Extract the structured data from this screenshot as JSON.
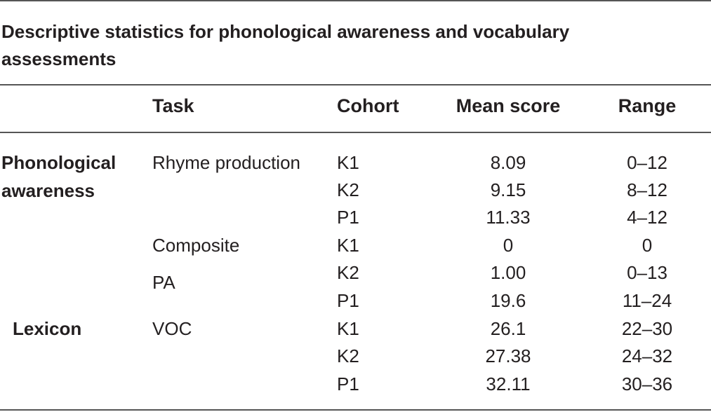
{
  "table": {
    "caption": "Descriptive statistics for phonological awareness and vocabulary assessments",
    "columns": {
      "task": "Task",
      "cohort": "Cohort",
      "mean": "Mean score",
      "range": "Range"
    },
    "groups": [
      {
        "label": "Phonological awareness",
        "label_lines": [
          "Phonological",
          "awareness"
        ],
        "tasks": [
          {
            "task": "Rhyme production",
            "task_lines": [
              "Rhyme production"
            ],
            "rows": [
              {
                "cohort": "K1",
                "mean": "8.09",
                "range": "0–12"
              },
              {
                "cohort": "K2",
                "mean": "9.15",
                "range": "8–12"
              },
              {
                "cohort": "P1",
                "mean": "11.33",
                "range": "4–12"
              }
            ]
          },
          {
            "task": "Composite PA",
            "task_lines": [
              "Composite",
              "PA"
            ],
            "rows": [
              {
                "cohort": "K1",
                "mean": "0",
                "range": "0"
              },
              {
                "cohort": "K2",
                "mean": "1.00",
                "range": "0–13"
              },
              {
                "cohort": "P1",
                "mean": "19.6",
                "range": "11–24"
              }
            ]
          }
        ]
      },
      {
        "label": "Lexicon",
        "label_lines": [
          "Lexicon"
        ],
        "tasks": [
          {
            "task": "VOC",
            "task_lines": [
              "VOC"
            ],
            "rows": [
              {
                "cohort": "K1",
                "mean": "26.1",
                "range": "22–30"
              },
              {
                "cohort": "K2",
                "mean": "27.38",
                "range": "24–32"
              },
              {
                "cohort": "P1",
                "mean": "32.11",
                "range": "30–36"
              }
            ]
          }
        ]
      }
    ]
  }
}
